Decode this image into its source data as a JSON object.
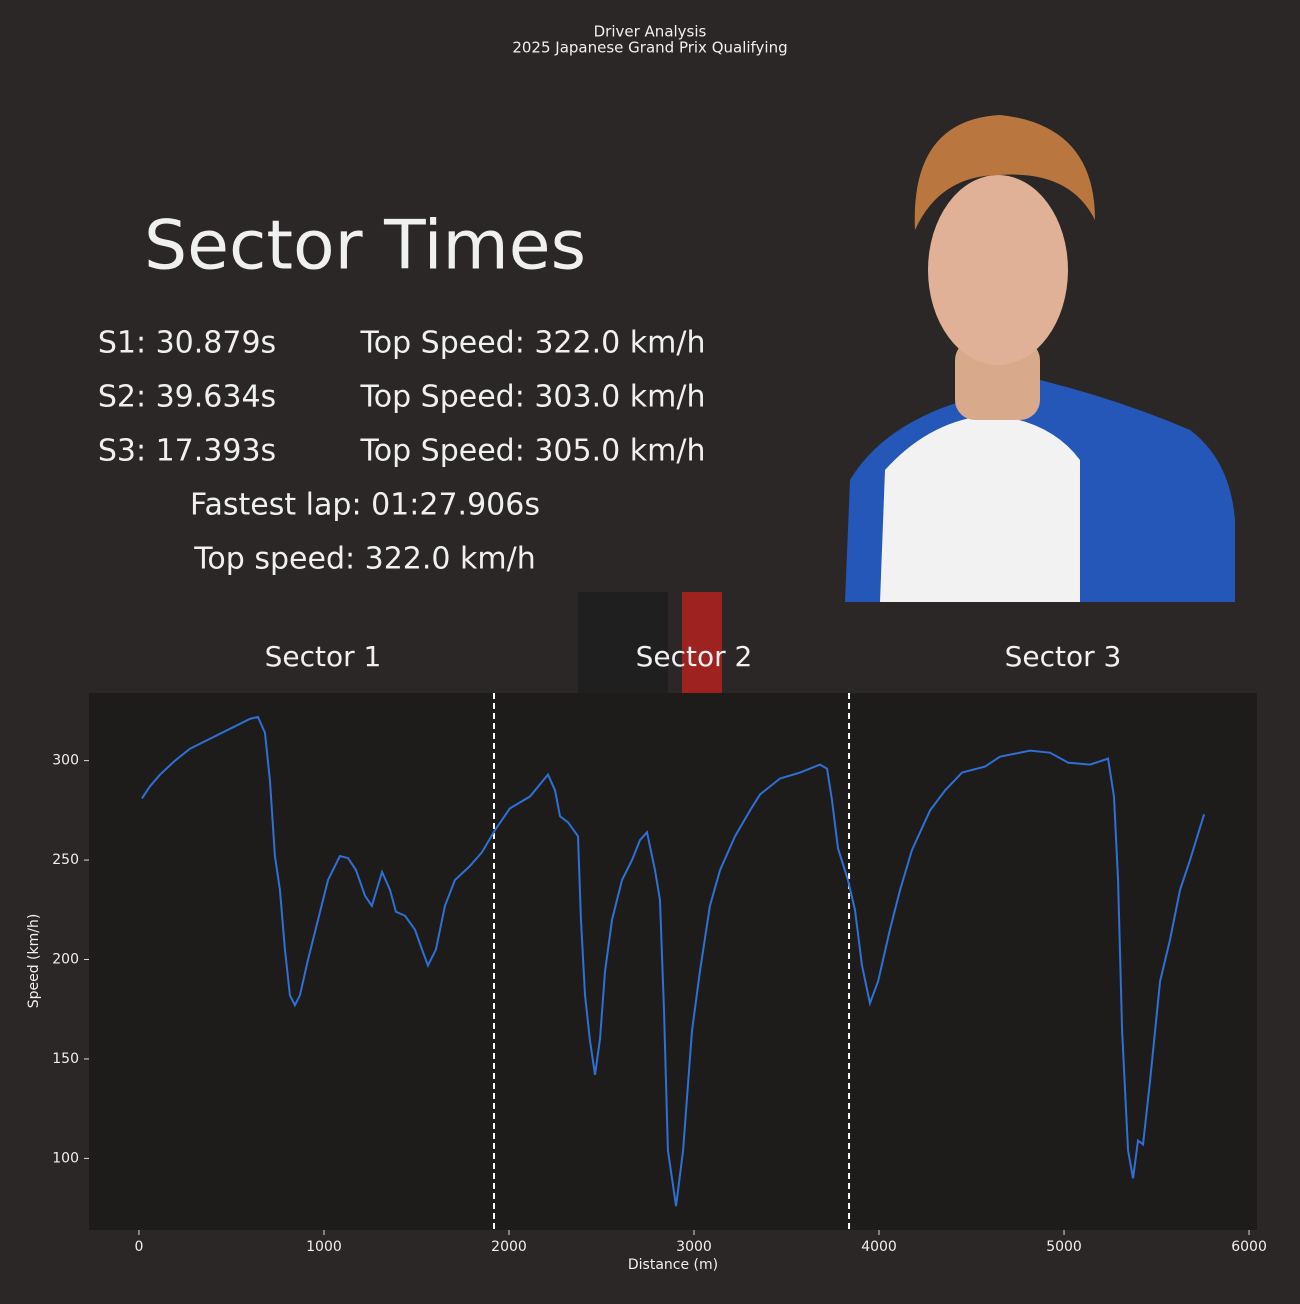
{
  "header": {
    "title": "Driver Analysis",
    "subtitle": "2025 Japanese Grand Prix Qualifying"
  },
  "summary": {
    "heading": "Sector Times",
    "rows": [
      [
        "S1: 30.879s",
        "Top Speed: 322.0 km/h"
      ],
      [
        "S2: 39.634s",
        "Top Speed: 303.0 km/h"
      ],
      [
        "S3: 17.393s",
        "Top Speed: 305.0 km/h"
      ]
    ],
    "fastest_lap": "Fastest lap: 01:27.906s",
    "top_speed": "Top speed: 322.0 km/h"
  },
  "chart_data": {
    "type": "line",
    "sector_labels": [
      "Sector 1",
      "Sector 2",
      "Sector 3"
    ],
    "sector_bounds": [
      1919,
      3838
    ],
    "xlabel": "Distance (m)",
    "ylabel": "Speed (km/h)",
    "xlim": [
      -270,
      6043
    ],
    "ylim": [
      64,
      334
    ],
    "xticks": [
      0,
      1000,
      2000,
      3000,
      4000,
      5000,
      6000
    ],
    "yticks": [
      100,
      150,
      200,
      250,
      300
    ],
    "color": "#2f6fd6",
    "x": [
      16,
      59,
      114,
      195,
      276,
      384,
      492,
      600,
      643,
      681,
      708,
      735,
      762,
      789,
      816,
      843,
      870,
      914,
      968,
      1022,
      1086,
      1130,
      1173,
      1222,
      1259,
      1314,
      1357,
      1389,
      1438,
      1492,
      1530,
      1562,
      1605,
      1654,
      1708,
      1789,
      1854,
      1924,
      2005,
      2114,
      2211,
      2249,
      2276,
      2319,
      2373,
      2389,
      2411,
      2438,
      2465,
      2492,
      2519,
      2557,
      2611,
      2665,
      2708,
      2746,
      2789,
      2816,
      2838,
      2859,
      2903,
      2941,
      2989,
      3032,
      3086,
      3141,
      3222,
      3303,
      3357,
      3465,
      3573,
      3681,
      3719,
      3746,
      3778,
      3832,
      3870,
      3908,
      3951,
      3995,
      4059,
      4114,
      4178,
      4276,
      4357,
      4449,
      4573,
      4654,
      4816,
      4924,
      5022,
      5141,
      5238,
      5270,
      5292,
      5314,
      5346,
      5373,
      5400,
      5427,
      5465,
      5519,
      5573,
      5627,
      5681,
      5757
    ],
    "values": [
      281,
      287,
      293,
      300,
      306,
      311,
      316,
      321,
      322,
      314,
      290,
      252,
      235,
      205,
      182,
      177,
      182,
      200,
      220,
      240,
      252,
      251,
      245,
      232,
      227,
      244,
      235,
      224,
      222,
      215,
      205,
      197,
      205,
      227,
      240,
      247,
      254,
      265,
      276,
      282,
      293,
      285,
      272,
      269,
      262,
      220,
      182,
      159,
      142,
      160,
      194,
      220,
      240,
      250,
      260,
      264,
      245,
      230,
      174,
      104,
      76,
      104,
      164,
      194,
      227,
      245,
      262,
      275,
      283,
      291,
      294,
      298,
      296,
      280,
      256,
      240,
      225,
      197,
      178,
      189,
      215,
      235,
      255,
      275,
      285,
      294,
      297,
      302,
      305,
      304,
      299,
      298,
      301,
      282,
      240,
      164,
      104,
      90,
      109,
      107,
      139,
      189,
      210,
      235,
      250,
      273
    ]
  }
}
